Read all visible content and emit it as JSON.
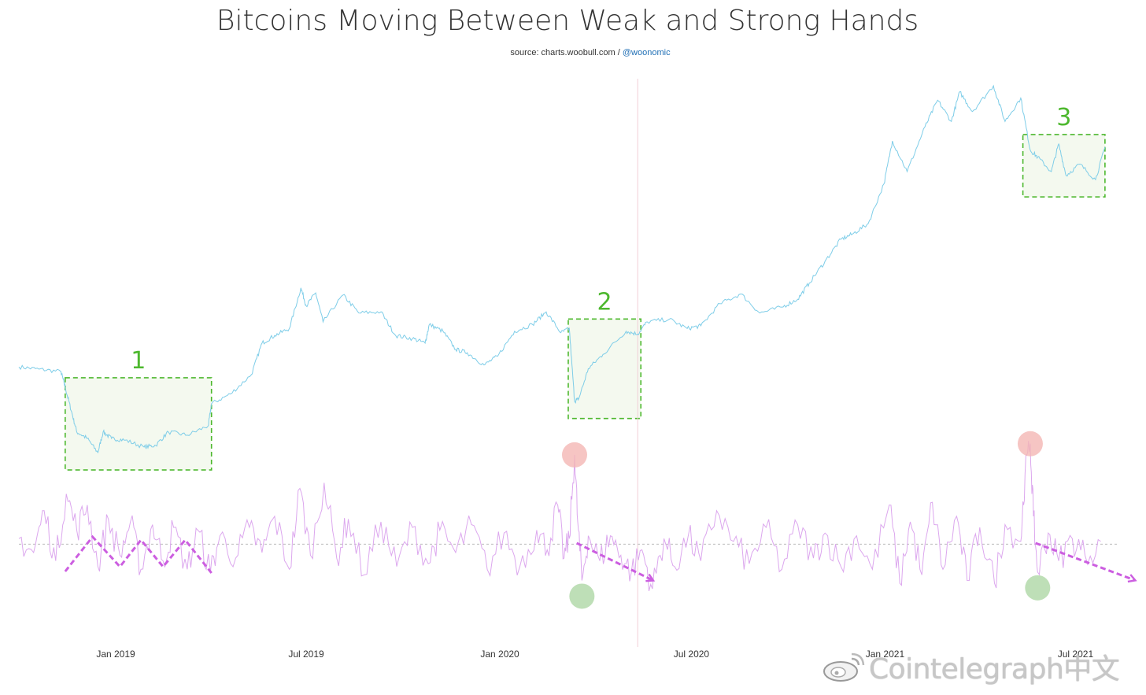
{
  "header": {
    "title": "Bitcoins Moving Between Weak and Strong Hands",
    "source_prefix": "source: charts.woobull.com / ",
    "source_handle": "@woonomic"
  },
  "watermark": {
    "text": "Cointelegraph中文",
    "icon": "weibo-icon"
  },
  "colors": {
    "price_line": "#7ecde8",
    "flow_line": "#dca7ee",
    "box_border": "#4db82e",
    "box_fill": "#f4f9ef",
    "annotation_label": "#4db82e",
    "arrow": "#cc5ee0",
    "sell_marker": "#f4b7b4",
    "buy_marker": "#aed7a5",
    "zero_line": "#bbbbbb",
    "divider": "#f1cfd6"
  },
  "annotations": {
    "boxes": [
      {
        "label": "1",
        "from": "2018-11-14",
        "to": "2019-04-02"
      },
      {
        "label": "2",
        "from": "2020-03-06",
        "to": "2020-05-14"
      },
      {
        "label": "3",
        "from": "2021-05-12",
        "to": "2021-07-29"
      }
    ],
    "sell_markers": [
      "2020-03-12",
      "2021-05-19"
    ],
    "buy_markers": [
      "2020-03-19",
      "2021-05-26"
    ]
  },
  "chart_data": {
    "type": "line",
    "title": "Bitcoins Moving Between Weak and Strong Hands",
    "x_range": [
      "2018-10-01",
      "2021-08-28"
    ],
    "x_ticks": [
      {
        "date": "2019-01-01",
        "label": "Jan 2019"
      },
      {
        "date": "2019-07-01",
        "label": "Jul 2019"
      },
      {
        "date": "2020-01-01",
        "label": "Jan 2020"
      },
      {
        "date": "2020-07-01",
        "label": "Jul 2020"
      },
      {
        "date": "2021-01-01",
        "label": "Jan 2021"
      },
      {
        "date": "2021-07-01",
        "label": "Jul 2021"
      }
    ],
    "grid": false,
    "legend": "none",
    "divider_date": "2020-05-11",
    "series": [
      {
        "role": "price",
        "scale": "log",
        "y_range": [
          3000,
          70000
        ],
        "points": [
          [
            "2018-10-01",
            6600
          ],
          [
            "2018-10-20",
            6480
          ],
          [
            "2018-11-10",
            6350
          ],
          [
            "2018-11-14",
            5600
          ],
          [
            "2018-11-20",
            4600
          ],
          [
            "2018-11-25",
            3900
          ],
          [
            "2018-12-05",
            3700
          ],
          [
            "2018-12-15",
            3300
          ],
          [
            "2018-12-20",
            3900
          ],
          [
            "2018-12-28",
            3700
          ],
          [
            "2019-01-10",
            3650
          ],
          [
            "2019-01-28",
            3450
          ],
          [
            "2019-02-08",
            3500
          ],
          [
            "2019-02-20",
            3900
          ],
          [
            "2019-03-10",
            3800
          ],
          [
            "2019-03-30",
            4100
          ],
          [
            "2019-04-02",
            4900
          ],
          [
            "2019-04-20",
            5300
          ],
          [
            "2019-05-10",
            6200
          ],
          [
            "2019-05-20",
            8000
          ],
          [
            "2019-06-01",
            8500
          ],
          [
            "2019-06-15",
            9000
          ],
          [
            "2019-06-26",
            12500
          ],
          [
            "2019-07-01",
            10800
          ],
          [
            "2019-07-10",
            12000
          ],
          [
            "2019-07-17",
            9500
          ],
          [
            "2019-08-05",
            11800
          ],
          [
            "2019-08-20",
            10200
          ],
          [
            "2019-09-10",
            10300
          ],
          [
            "2019-09-24",
            8500
          ],
          [
            "2019-10-10",
            8300
          ],
          [
            "2019-10-22",
            8000
          ],
          [
            "2019-10-26",
            9300
          ],
          [
            "2019-11-08",
            8800
          ],
          [
            "2019-11-20",
            7600
          ],
          [
            "2019-12-01",
            7400
          ],
          [
            "2019-12-17",
            6700
          ],
          [
            "2019-12-30",
            7200
          ],
          [
            "2020-01-15",
            8800
          ],
          [
            "2020-02-01",
            9300
          ],
          [
            "2020-02-14",
            10300
          ],
          [
            "2020-02-28",
            8700
          ],
          [
            "2020-03-07",
            9000
          ],
          [
            "2020-03-12",
            5000
          ],
          [
            "2020-03-16",
            5100
          ],
          [
            "2020-03-25",
            6500
          ],
          [
            "2020-04-08",
            7300
          ],
          [
            "2020-04-30",
            8800
          ],
          [
            "2020-05-11",
            8600
          ],
          [
            "2020-05-20",
            9500
          ],
          [
            "2020-06-10",
            9700
          ],
          [
            "2020-06-27",
            9000
          ],
          [
            "2020-07-10",
            9200
          ],
          [
            "2020-07-28",
            11000
          ],
          [
            "2020-08-17",
            11900
          ],
          [
            "2020-09-04",
            10200
          ],
          [
            "2020-09-25",
            10700
          ],
          [
            "2020-10-10",
            11400
          ],
          [
            "2020-10-21",
            13000
          ],
          [
            "2020-11-05",
            15500
          ],
          [
            "2020-11-20",
            18500
          ],
          [
            "2020-12-01",
            19300
          ],
          [
            "2020-12-16",
            21000
          ],
          [
            "2020-12-31",
            29000
          ],
          [
            "2021-01-08",
            41000
          ],
          [
            "2021-01-22",
            32000
          ],
          [
            "2021-02-08",
            46000
          ],
          [
            "2021-02-20",
            57000
          ],
          [
            "2021-03-05",
            48000
          ],
          [
            "2021-03-13",
            61000
          ],
          [
            "2021-03-25",
            52000
          ],
          [
            "2021-04-14",
            64000
          ],
          [
            "2021-04-25",
            48000
          ],
          [
            "2021-05-10",
            58000
          ],
          [
            "2021-05-19",
            38000
          ],
          [
            "2021-05-26",
            36000
          ],
          [
            "2021-06-08",
            32000
          ],
          [
            "2021-06-15",
            40000
          ],
          [
            "2021-06-22",
            31000
          ],
          [
            "2021-07-05",
            34000
          ],
          [
            "2021-07-20",
            30000
          ],
          [
            "2021-07-29",
            39000
          ]
        ]
      },
      {
        "role": "flow",
        "y_range": [
          -2.5,
          3
        ],
        "zero": 0,
        "points": [
          [
            "2018-10-01",
            0.2
          ],
          [
            "2018-10-15",
            -0.3
          ],
          [
            "2018-10-25",
            1.2
          ],
          [
            "2018-11-05",
            -0.6
          ],
          [
            "2018-11-15",
            1.8
          ],
          [
            "2018-11-25",
            0.5
          ],
          [
            "2018-12-05",
            1.4
          ],
          [
            "2018-12-15",
            -0.8
          ],
          [
            "2018-12-25",
            0.9
          ],
          [
            "2019-01-05",
            -0.4
          ],
          [
            "2019-01-15",
            0.8
          ],
          [
            "2019-01-25",
            -0.9
          ],
          [
            "2019-02-05",
            0.7
          ],
          [
            "2019-02-15",
            -0.6
          ],
          [
            "2019-02-25",
            0.6
          ],
          [
            "2019-03-10",
            -0.9
          ],
          [
            "2019-03-20",
            0.5
          ],
          [
            "2019-04-01",
            -1.0
          ],
          [
            "2019-04-10",
            0.3
          ],
          [
            "2019-04-25",
            -0.5
          ],
          [
            "2019-05-08",
            0.6
          ],
          [
            "2019-05-20",
            -0.3
          ],
          [
            "2019-06-01",
            1.0
          ],
          [
            "2019-06-15",
            -0.9
          ],
          [
            "2019-06-25",
            2.0
          ],
          [
            "2019-07-05",
            -0.4
          ],
          [
            "2019-07-18",
            2.2
          ],
          [
            "2019-07-30",
            -0.5
          ],
          [
            "2019-08-10",
            0.9
          ],
          [
            "2019-08-25",
            -1.1
          ],
          [
            "2019-09-10",
            0.8
          ],
          [
            "2019-09-25",
            -0.8
          ],
          [
            "2019-10-10",
            0.6
          ],
          [
            "2019-10-25",
            -0.7
          ],
          [
            "2019-11-05",
            0.5
          ],
          [
            "2019-11-20",
            -0.3
          ],
          [
            "2019-12-05",
            0.7
          ],
          [
            "2019-12-20",
            -0.9
          ],
          [
            "2020-01-05",
            0.4
          ],
          [
            "2020-01-20",
            -0.8
          ],
          [
            "2020-02-05",
            0.5
          ],
          [
            "2020-02-15",
            -0.2
          ],
          [
            "2020-02-25",
            1.4
          ],
          [
            "2020-03-02",
            -0.5
          ],
          [
            "2020-03-07",
            0.2
          ],
          [
            "2020-03-12",
            3.2
          ],
          [
            "2020-03-15",
            0.8
          ],
          [
            "2020-03-19",
            -1.3
          ],
          [
            "2020-03-25",
            0.3
          ],
          [
            "2020-04-05",
            -0.6
          ],
          [
            "2020-04-15",
            0.3
          ],
          [
            "2020-04-25",
            -0.4
          ],
          [
            "2020-05-05",
            -1.0
          ],
          [
            "2020-05-15",
            -0.2
          ],
          [
            "2020-05-25",
            -1.6
          ],
          [
            "2020-06-05",
            0.2
          ],
          [
            "2020-06-15",
            -0.8
          ],
          [
            "2020-06-28",
            0.3
          ],
          [
            "2020-07-10",
            -0.6
          ],
          [
            "2020-07-25",
            1.2
          ],
          [
            "2020-08-10",
            0.1
          ],
          [
            "2020-08-25",
            -0.7
          ],
          [
            "2020-09-10",
            0.6
          ],
          [
            "2020-09-25",
            -0.9
          ],
          [
            "2020-10-10",
            0.7
          ],
          [
            "2020-10-25",
            -0.5
          ],
          [
            "2020-11-05",
            0.4
          ],
          [
            "2020-11-20",
            -0.8
          ],
          [
            "2020-12-05",
            0.3
          ],
          [
            "2020-12-20",
            -0.9
          ],
          [
            "2021-01-05",
            1.4
          ],
          [
            "2021-01-15",
            -1.4
          ],
          [
            "2021-01-25",
            0.8
          ],
          [
            "2021-02-05",
            -1.1
          ],
          [
            "2021-02-15",
            1.5
          ],
          [
            "2021-02-25",
            -0.9
          ],
          [
            "2021-03-10",
            1.0
          ],
          [
            "2021-03-20",
            -1.3
          ],
          [
            "2021-04-01",
            0.6
          ],
          [
            "2021-04-15",
            -1.4
          ],
          [
            "2021-04-25",
            0.7
          ],
          [
            "2021-05-10",
            0.1
          ],
          [
            "2021-05-14",
            2.5
          ],
          [
            "2021-05-19",
            3.6
          ],
          [
            "2021-05-22",
            1.0
          ],
          [
            "2021-05-26",
            -1.0
          ],
          [
            "2021-06-05",
            0.4
          ],
          [
            "2021-06-15",
            -0.6
          ],
          [
            "2021-06-28",
            0.2
          ],
          [
            "2021-07-10",
            -0.4
          ],
          [
            "2021-07-25",
            0.1
          ]
        ]
      }
    ]
  }
}
